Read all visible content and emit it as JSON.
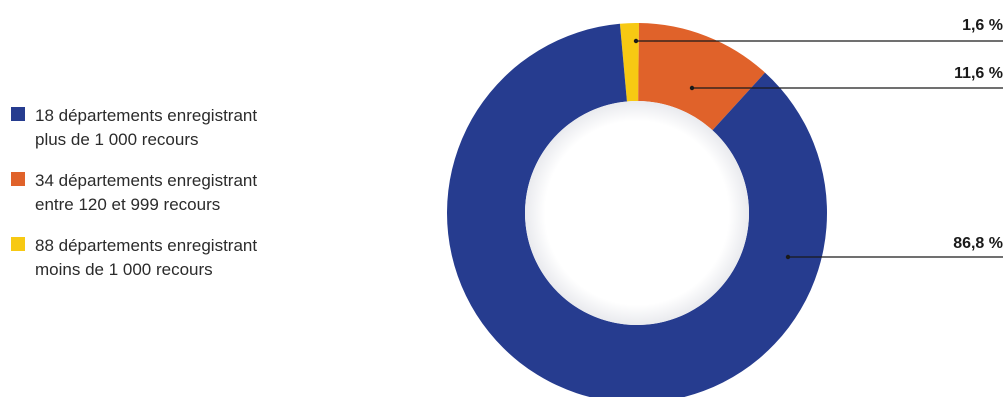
{
  "chart_data": {
    "type": "pie",
    "variant": "donut",
    "title": "",
    "categories": [
      "18 départements  enregistrant\nplus de 1 000 recours",
      "34 départements  enregistrant\nentre 120 et 999 recours",
      "88 départements  enregistrant\nmoins de 1 000 recours"
    ],
    "values": [
      86.8,
      11.6,
      1.6
    ],
    "value_labels": [
      "86,8 %",
      "11,6 %",
      "1,6 %"
    ],
    "colors": [
      "#263c8f",
      "#e0622a",
      "#f7c913"
    ],
    "legend_position": "left"
  }
}
